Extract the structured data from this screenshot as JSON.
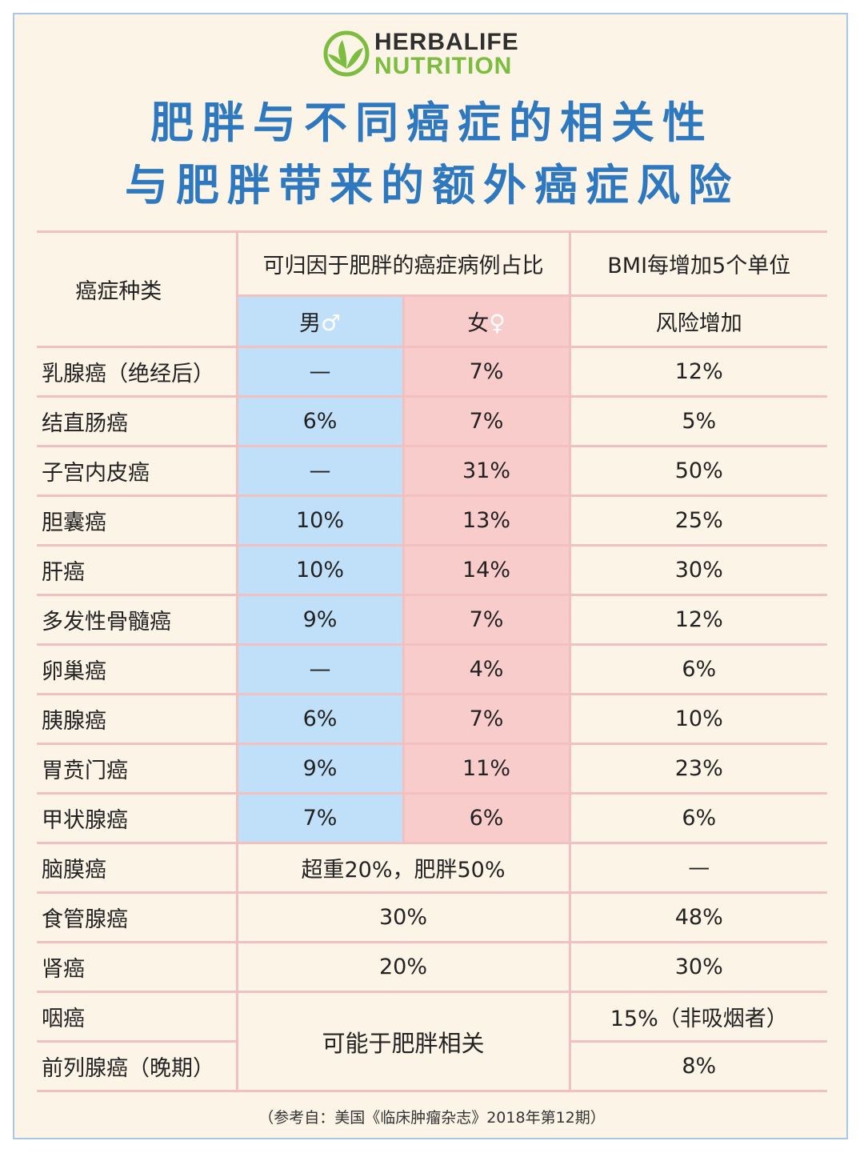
{
  "logo": {
    "line1": "HERBALIFE",
    "line2": "NUTRITION",
    "icon": "herbalife-leaf-icon",
    "color": "#7cbc3f"
  },
  "title": {
    "line1": "肥胖与不同癌症的相关性",
    "line2": "与肥胖带来的额外癌症风险"
  },
  "header": {
    "cancer_type": "癌症种类",
    "attributable": "可归因于肥胖的癌症病例占比",
    "bmi": "BMI每增加5个单位",
    "male": "男",
    "male_symbol": "♂",
    "female": "女",
    "female_symbol": "♀",
    "risk": "风险增加"
  },
  "rows": [
    {
      "name": "乳腺癌（绝经后）",
      "male": "—",
      "female": "7%",
      "risk": "12%"
    },
    {
      "name": "结直肠癌",
      "male": "6%",
      "female": "7%",
      "risk": "5%"
    },
    {
      "name": "子宫内皮癌",
      "male": "—",
      "female": "31%",
      "risk": "50%"
    },
    {
      "name": "胆囊癌",
      "male": "10%",
      "female": "13%",
      "risk": "25%"
    },
    {
      "name": "肝癌",
      "male": "10%",
      "female": "14%",
      "risk": "30%"
    },
    {
      "name": "多发性骨髓癌",
      "male": "9%",
      "female": "7%",
      "risk": "12%"
    },
    {
      "name": "卵巢癌",
      "male": "—",
      "female": "4%",
      "risk": "6%"
    },
    {
      "name": "胰腺癌",
      "male": "6%",
      "female": "7%",
      "risk": "10%"
    },
    {
      "name": "胃贲门癌",
      "male": "9%",
      "female": "11%",
      "risk": "23%"
    },
    {
      "name": "甲状腺癌",
      "male": "7%",
      "female": "6%",
      "risk": "6%"
    }
  ],
  "merged_rows": [
    {
      "name": "脑膜癌",
      "combined": "超重20%，肥胖50%",
      "risk": "—"
    },
    {
      "name": "食管腺癌",
      "combined": "30%",
      "risk": "48%"
    },
    {
      "name": "肾癌",
      "combined": "20%",
      "risk": "30%"
    }
  ],
  "final_rows": {
    "names": [
      "咽癌",
      "前列腺癌（晚期）"
    ],
    "combined": "可能于肥胖相关",
    "risks": [
      "15%（非吸烟者）",
      "8%"
    ]
  },
  "reference": "（参考自：美国《临床肿瘤杂志》2018年第12期）",
  "colors": {
    "male_bg": "#bfe0f8",
    "female_bg": "#f9cccc",
    "title": "#2e78bf",
    "page_bg": "#fdf4e8"
  }
}
